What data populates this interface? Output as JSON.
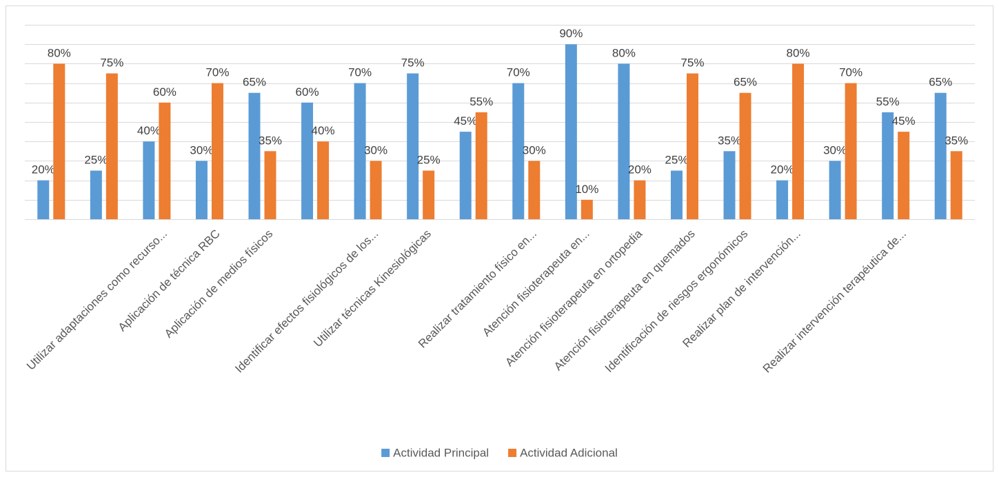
{
  "chart_data": {
    "type": "bar",
    "categories": [
      null,
      null,
      "Utilizar adaptaciones como recurso...",
      "Aplicación de técnica RBC",
      "Aplicación de medios físicos",
      null,
      "Identificar efectos fisiológicos de los...",
      "Utilizar técnicas Kinesiológicas",
      null,
      "Realizar tratamiento físico en...",
      "Atención fisioterapeuta en...",
      "Atención fisioterapeuta en ortopedia",
      "Atención fisioterapeuta en quemados",
      "Identificación de riesgos ergonómicos",
      "Realizar plan de intervención...",
      null,
      "Realizar intervención terapéutica de...",
      null
    ],
    "series": [
      {
        "name": "Actividad Principal",
        "color": "#5b9bd5",
        "values": [
          20,
          25,
          40,
          30,
          65,
          60,
          70,
          75,
          45,
          70,
          90,
          80,
          25,
          35,
          20,
          30,
          55,
          65
        ],
        "value_labels": [
          "20%",
          "25%",
          "40%",
          "30%",
          "65%",
          "60%",
          "70%",
          "75%",
          "45%",
          "70%",
          "90%",
          "80%",
          "25%",
          "35%",
          "20%",
          "30%",
          "55%",
          "65%"
        ]
      },
      {
        "name": "Actividad Adicional",
        "color": "#ed7d31",
        "values": [
          80,
          75,
          60,
          70,
          35,
          40,
          30,
          25,
          55,
          30,
          10,
          20,
          75,
          65,
          80,
          70,
          45,
          35
        ],
        "value_labels": [
          "80%",
          "75%",
          "60%",
          "70%",
          "35%",
          "40%",
          "30%",
          "25%",
          "55%",
          "30%",
          "10%",
          "20%",
          "75%",
          "65%",
          "80%",
          "70%",
          "45%",
          "35%"
        ]
      }
    ],
    "ylim": [
      0,
      100
    ],
    "yticks": [
      0,
      10,
      20,
      30,
      40,
      50,
      60,
      70,
      80,
      90,
      100
    ],
    "grid": true,
    "legend": "bottom"
  }
}
